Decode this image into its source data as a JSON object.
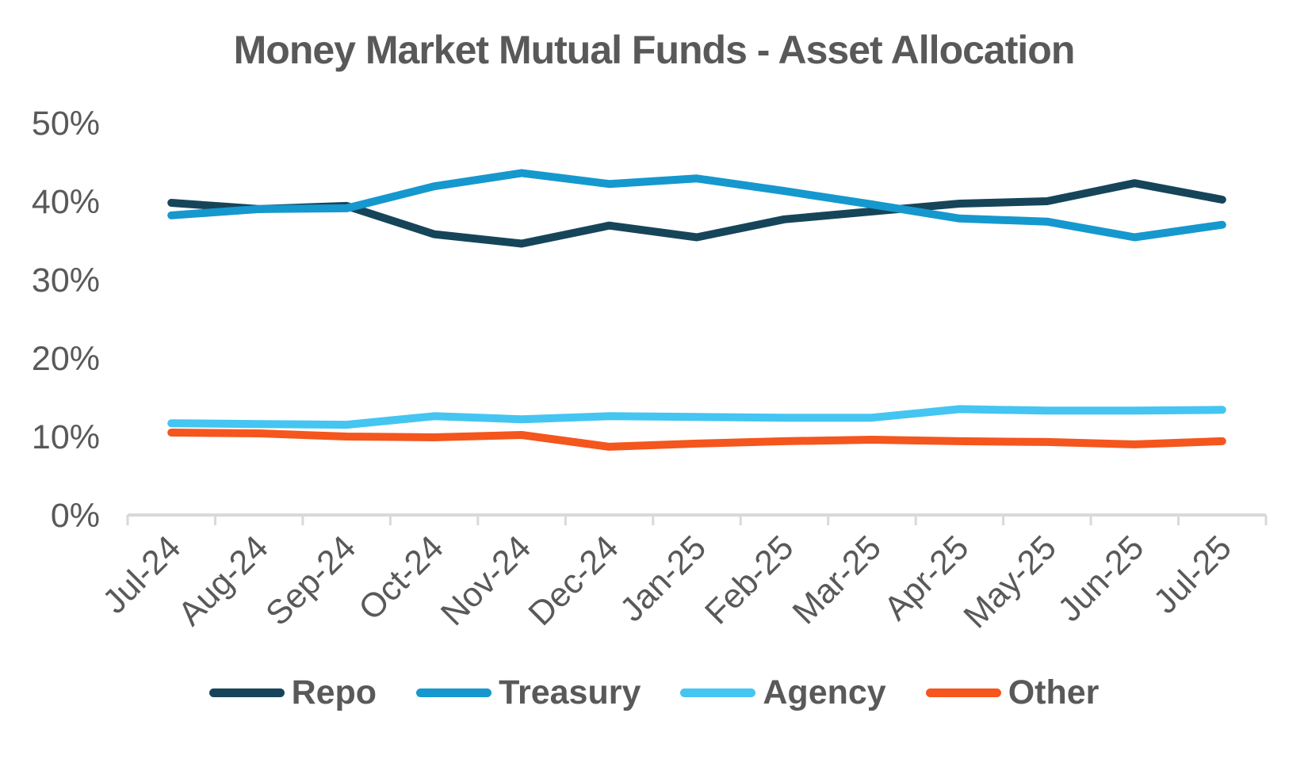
{
  "chart": {
    "title": "Money Market Mutual Funds - Asset Allocation",
    "colors": {
      "axis": "#D9D9D9",
      "text": "#595959",
      "background": "#FFFFFF"
    }
  },
  "chart_data": {
    "type": "line",
    "title": "Money Market Mutual Funds - Asset Allocation",
    "categories": [
      "Jul-24",
      "Aug-24",
      "Sep-24",
      "Oct-24",
      "Nov-24",
      "Dec-24",
      "Jan-25",
      "Feb-25",
      "Mar-25",
      "Apr-25",
      "May-25",
      "Jun-25",
      "Jul-25"
    ],
    "series": [
      {
        "name": "Repo",
        "color": "#16455A",
        "values": [
          39.8,
          39.0,
          39.4,
          35.8,
          34.6,
          36.9,
          35.4,
          37.7,
          38.7,
          39.7,
          40.0,
          42.3,
          40.2
        ]
      },
      {
        "name": "Treasury",
        "color": "#1598CE",
        "values": [
          38.2,
          39.0,
          39.1,
          41.9,
          43.6,
          42.2,
          42.9,
          41.3,
          39.6,
          37.8,
          37.4,
          35.4,
          37.0
        ]
      },
      {
        "name": "Agency",
        "color": "#45C5F1",
        "values": [
          11.7,
          11.6,
          11.5,
          12.6,
          12.2,
          12.6,
          12.5,
          12.4,
          12.4,
          13.5,
          13.3,
          13.3,
          13.4
        ]
      },
      {
        "name": "Other",
        "color": "#F4561E",
        "values": [
          10.5,
          10.4,
          10.0,
          9.9,
          10.2,
          8.7,
          9.1,
          9.4,
          9.6,
          9.4,
          9.3,
          9.0,
          9.4
        ]
      }
    ],
    "xlabel": "",
    "ylabel": "",
    "y_ticks": [
      0,
      10,
      20,
      30,
      40,
      50
    ],
    "y_tick_suffix": "%",
    "ylim": [
      0,
      50
    ],
    "grid": false,
    "legend_position": "bottom",
    "x_label_rotation": -45
  }
}
